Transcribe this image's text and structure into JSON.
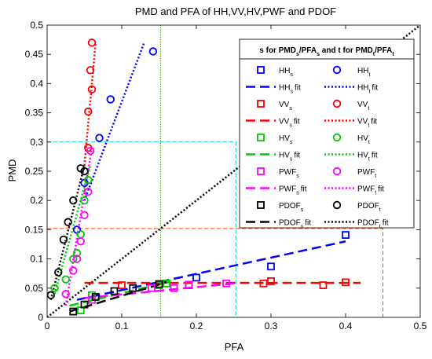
{
  "chart_data": {
    "type": "scatter",
    "title": "PMD and PFA of HH,VV,HV,PWF and PDOF",
    "xlabel": "PFA",
    "ylabel": "PMD",
    "xlim": [
      0,
      0.5
    ],
    "ylim": [
      0,
      0.5
    ],
    "xticks": [
      "0",
      "0.1",
      "0.2",
      "0.3",
      "0.4",
      "0.5"
    ],
    "yticks": [
      "0",
      "0.05",
      "0.1",
      "0.15",
      "0.2",
      "0.25",
      "0.3",
      "0.35",
      "0.4",
      "0.45",
      "0.5"
    ],
    "grid": false,
    "legend": {
      "position": "top-right",
      "title_parts": [
        "s for PMD",
        "s",
        "/PFA",
        "s",
        " and t for PMD",
        "t",
        "/PFA",
        "t"
      ]
    },
    "reference_line": {
      "x": [
        0,
        0.5
      ],
      "y": [
        0,
        0.5
      ],
      "color": "#000000",
      "style": "dotted"
    },
    "series": [
      {
        "key": "HH",
        "color": "#0000ff",
        "s_points": {
          "x": [
            0.2,
            0.3,
            0.4
          ],
          "y": [
            0.068,
            0.087,
            0.141
          ]
        },
        "s_fit": {
          "x": [
            0.04,
            0.4
          ],
          "y": [
            0.03,
            0.13
          ]
        },
        "t_points": {
          "x": [
            0.04,
            0.05,
            0.07,
            0.085,
            0.142
          ],
          "y": [
            0.15,
            0.23,
            0.307,
            0.373,
            0.455
          ]
        },
        "t_fit": {
          "x": [
            0.05,
            0.13
          ],
          "y": [
            0.2,
            0.47
          ]
        },
        "box": {
          "x": [
            0,
            0.45
          ],
          "y": [
            0,
            0.152
          ],
          "color": "#ff4500"
        }
      },
      {
        "key": "VV",
        "color": "#ff0000",
        "s_points": {
          "x": [
            0.1,
            0.19,
            0.29,
            0.3,
            0.37,
            0.4
          ],
          "y": [
            0.055,
            0.055,
            0.058,
            0.062,
            0.055,
            0.06
          ]
        },
        "s_fit": {
          "x": [
            0.05,
            0.42
          ],
          "y": [
            0.059,
            0.059
          ]
        },
        "t_points": {
          "x": [
            0.055,
            0.055,
            0.058,
            0.06,
            0.06
          ],
          "y": [
            0.29,
            0.352,
            0.423,
            0.39,
            0.47
          ]
        },
        "t_fit": {
          "x": [
            0.05,
            0.065
          ],
          "y": [
            0.26,
            0.47
          ]
        }
      },
      {
        "key": "HV",
        "color": "#00c800",
        "s_points": {
          "x": [
            0.045,
            0.06,
            0.15,
            0.16
          ],
          "y": [
            0.012,
            0.038,
            0.055,
            0.058
          ]
        },
        "s_fit": {
          "x": [
            0.03,
            0.165
          ],
          "y": [
            0.02,
            0.061
          ]
        },
        "t_points": {
          "x": [
            0.01,
            0.025,
            0.035,
            0.04,
            0.045,
            0.05,
            0.055
          ],
          "y": [
            0.05,
            0.065,
            0.1,
            0.11,
            0.142,
            0.2,
            0.235
          ]
        },
        "t_fit": {
          "x": [
            0.01,
            0.058
          ],
          "y": [
            0.04,
            0.26
          ]
        },
        "box": {
          "x": [
            0,
            0.152
          ],
          "y": [
            0,
            0.5
          ],
          "color": "#3c9600"
        }
      },
      {
        "key": "PWF",
        "color": "#ff00ff",
        "s_points": {
          "x": [
            0.06,
            0.14,
            0.17,
            0.19,
            0.24
          ],
          "y": [
            0.03,
            0.05,
            0.05,
            0.056,
            0.058
          ]
        },
        "s_fit": {
          "x": [
            0.05,
            0.25
          ],
          "y": [
            0.033,
            0.058
          ]
        },
        "t_points": {
          "x": [
            0.025,
            0.035,
            0.04,
            0.045,
            0.05,
            0.055,
            0.058
          ],
          "y": [
            0.04,
            0.08,
            0.1,
            0.13,
            0.175,
            0.215,
            0.285
          ]
        },
        "t_fit": {
          "x": [
            0.025,
            0.06
          ],
          "y": [
            0.02,
            0.29
          ]
        },
        "box": {
          "x": [
            0,
            0.253
          ],
          "y": [
            0,
            0.3
          ],
          "color": "#00cccc"
        }
      },
      {
        "key": "PDOF",
        "color": "#000000",
        "s_points": {
          "x": [
            0.035,
            0.05,
            0.065,
            0.09,
            0.115,
            0.15
          ],
          "y": [
            0.01,
            0.022,
            0.035,
            0.045,
            0.05,
            0.057
          ]
        },
        "s_fit": {
          "x": [
            0.03,
            0.16
          ],
          "y": [
            0.01,
            0.06
          ]
        },
        "t_points": {
          "x": [
            0.005,
            0.015,
            0.022,
            0.028,
            0.035,
            0.045,
            0.05
          ],
          "y": [
            0.038,
            0.077,
            0.133,
            0.163,
            0.2,
            0.255,
            0.25
          ]
        },
        "t_fit": {
          "x": [
            0.005,
            0.05
          ],
          "y": [
            0.03,
            0.26
          ]
        }
      }
    ]
  }
}
